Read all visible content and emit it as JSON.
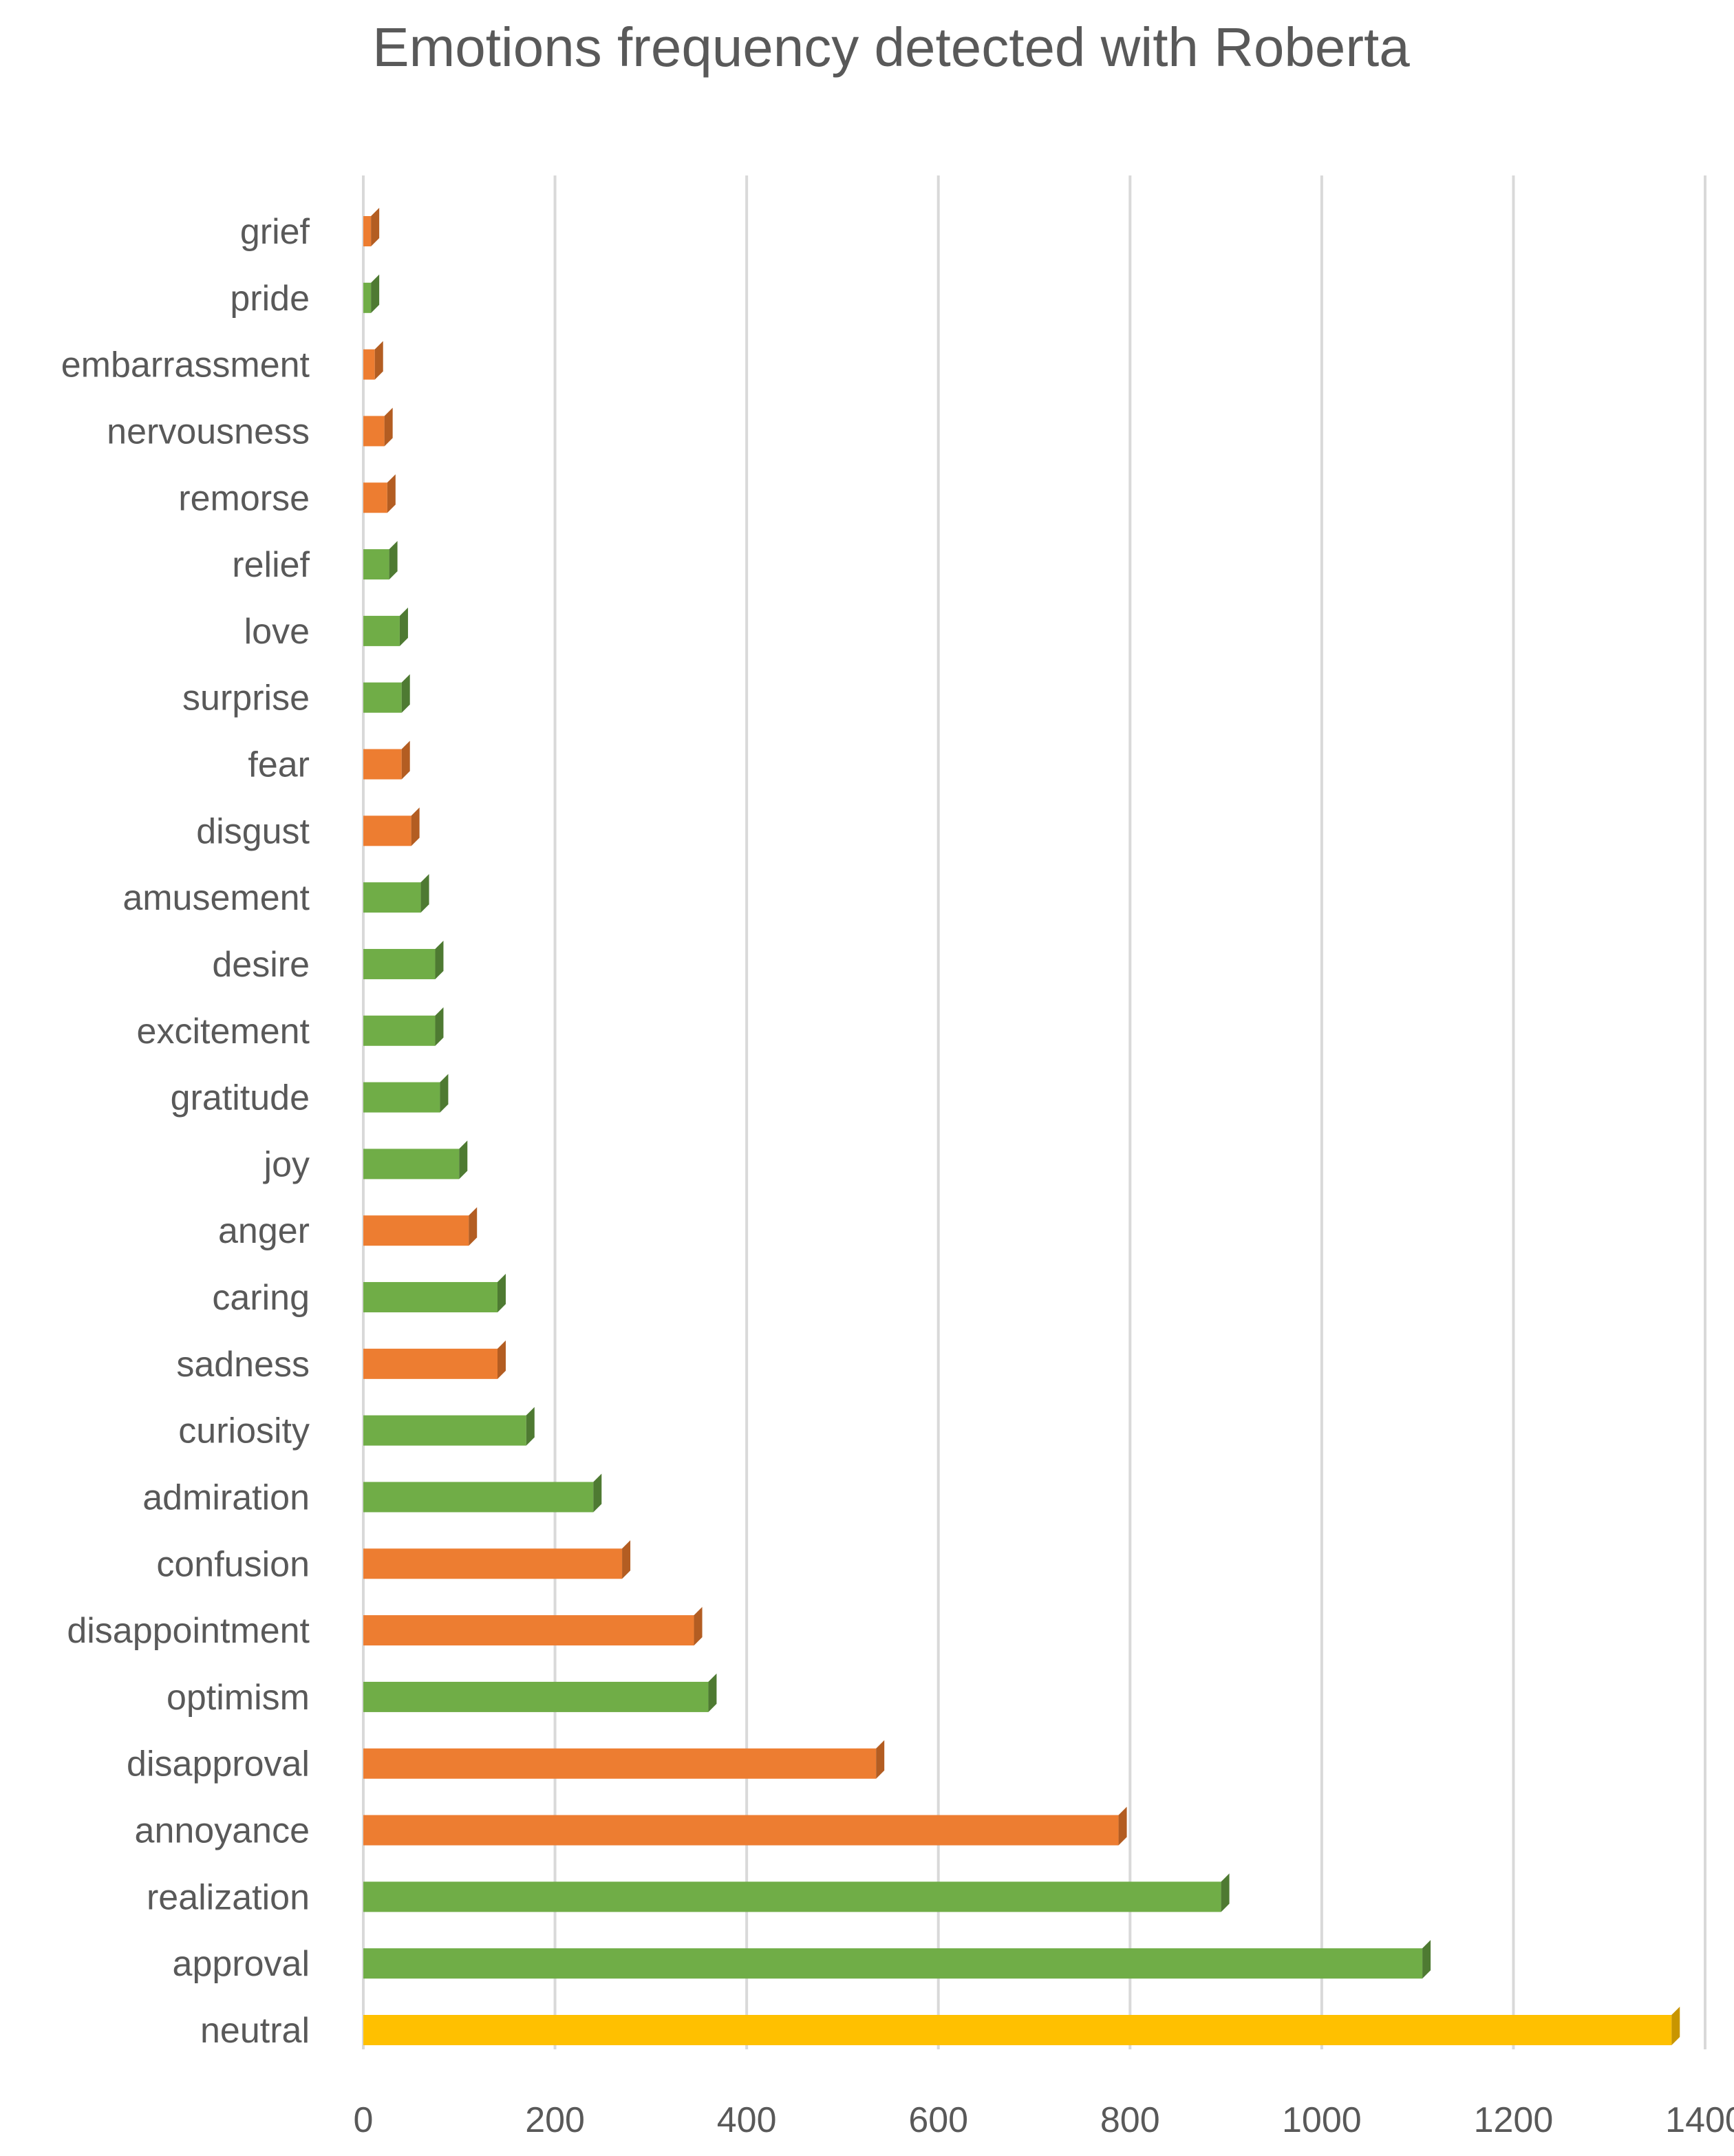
{
  "chart_data": {
    "type": "bar",
    "orientation": "horizontal",
    "title": "Emotions frequency detected with Roberta",
    "xlabel": "",
    "ylabel": "",
    "xlim": [
      0,
      1400
    ],
    "xticks": [
      0,
      200,
      400,
      600,
      800,
      1000,
      1200,
      1400
    ],
    "grid": true,
    "legend": "none",
    "categories": [
      "neutral",
      "approval",
      "realization",
      "annoyance",
      "disapproval",
      "optimism",
      "disappointment",
      "confusion",
      "admiration",
      "curiosity",
      "sadness",
      "caring",
      "anger",
      "joy",
      "gratitude",
      "excitement",
      "desire",
      "amusement",
      "disgust",
      "fear",
      "surprise",
      "love",
      "relief",
      "remorse",
      "nervousness",
      "embarrassment",
      "pride",
      "grief"
    ],
    "values": [
      1365,
      1105,
      895,
      788,
      535,
      360,
      345,
      270,
      240,
      170,
      140,
      140,
      110,
      100,
      80,
      75,
      75,
      60,
      50,
      40,
      40,
      38,
      27,
      25,
      22,
      12,
      8,
      8
    ],
    "groups": [
      "neutral",
      "positive",
      "positive",
      "negative",
      "negative",
      "positive",
      "negative",
      "negative",
      "positive",
      "positive",
      "negative",
      "positive",
      "negative",
      "positive",
      "positive",
      "positive",
      "positive",
      "positive",
      "negative",
      "negative",
      "positive",
      "positive",
      "positive",
      "negative",
      "negative",
      "negative",
      "positive",
      "negative"
    ],
    "colors": {
      "positive": "#70ad47",
      "negative": "#ed7d31",
      "neutral": "#ffc000",
      "positive_edge": "#4e7a32",
      "negative_edge": "#b35d22",
      "neutral_edge": "#c89500"
    }
  }
}
